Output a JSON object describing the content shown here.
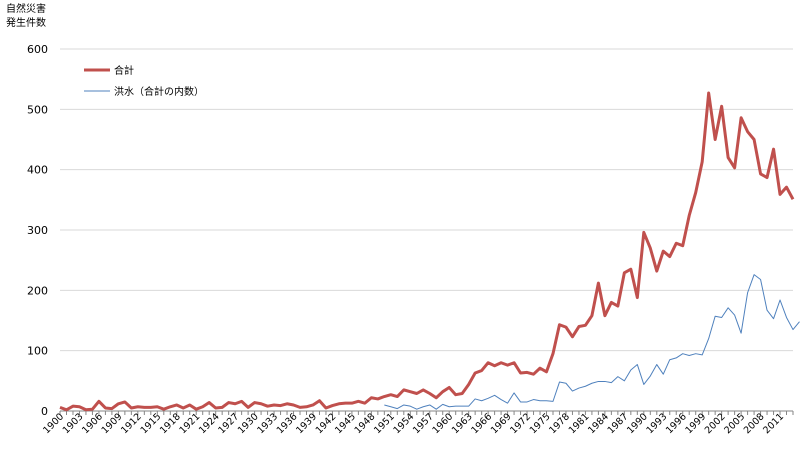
{
  "chart_data": {
    "type": "line",
    "ylabel": [
      "自然災害",
      "発生件数"
    ],
    "ylim": [
      0,
      600
    ],
    "yticks": [
      0,
      100,
      200,
      300,
      400,
      500,
      600
    ],
    "xlim": [
      1900,
      2013
    ],
    "xticks": [
      1900,
      1903,
      1906,
      1909,
      1912,
      1915,
      1918,
      1921,
      1924,
      1927,
      1930,
      1933,
      1936,
      1939,
      1942,
      1945,
      1948,
      1951,
      1954,
      1957,
      1960,
      1963,
      1966,
      1969,
      1972,
      1975,
      1978,
      1981,
      1984,
      1987,
      1990,
      1993,
      1996,
      1999,
      2002,
      2005,
      2008,
      2011
    ],
    "grid": "horizontal",
    "legend_position": "top-left",
    "series": [
      {
        "name": "合計",
        "color": "#c0504d",
        "x_start": 1900,
        "values": [
          6,
          2,
          8,
          7,
          2,
          3,
          16,
          5,
          4,
          12,
          15,
          5,
          7,
          6,
          6,
          7,
          3,
          7,
          10,
          5,
          10,
          3,
          7,
          14,
          5,
          6,
          14,
          12,
          16,
          6,
          14,
          12,
          8,
          10,
          9,
          12,
          10,
          6,
          7,
          10,
          17,
          5,
          9,
          12,
          13,
          13,
          16,
          13,
          22,
          20,
          24,
          27,
          24,
          35,
          32,
          29,
          35,
          29,
          22,
          32,
          39,
          27,
          29,
          44,
          63,
          67,
          80,
          75,
          80,
          76,
          80,
          63,
          64,
          61,
          71,
          65,
          95,
          143,
          139,
          123,
          140,
          142,
          158,
          212,
          158,
          180,
          174,
          229,
          235,
          188,
          296,
          270,
          232,
          265,
          256,
          278,
          274,
          324,
          362,
          413,
          527,
          450,
          505,
          420,
          403,
          486,
          463,
          450,
          393,
          387,
          434,
          359,
          371,
          351
        ]
      },
      {
        "name": "洪水（合計の内数）",
        "color": "#4f81bd",
        "x_start": 1950,
        "values": [
          10,
          7,
          4,
          10,
          8,
          3,
          7,
          10,
          3,
          11,
          7,
          8,
          8,
          8,
          20,
          17,
          21,
          26,
          19,
          13,
          30,
          15,
          15,
          19,
          17,
          17,
          16,
          48,
          46,
          33,
          38,
          41,
          46,
          49,
          49,
          47,
          57,
          50,
          68,
          77,
          44,
          58,
          77,
          61,
          85,
          88,
          95,
          92,
          95,
          93,
          120,
          157,
          155,
          171,
          159,
          129,
          196,
          226,
          218,
          167,
          153,
          184,
          155,
          135,
          148
        ]
      }
    ]
  }
}
